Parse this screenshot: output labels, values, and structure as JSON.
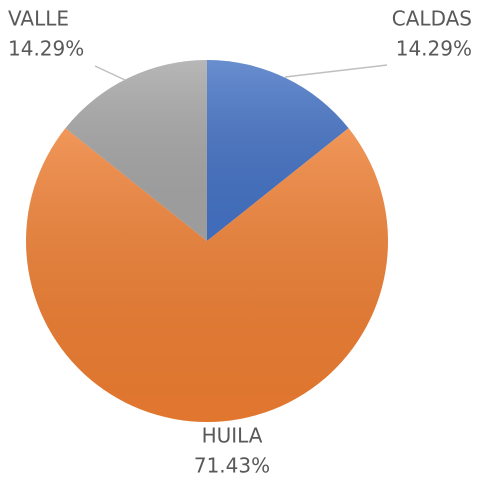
{
  "chart_data": {
    "type": "pie",
    "categories": [
      "CALDAS",
      "HUILA",
      "VALLE"
    ],
    "values": [
      14.29,
      71.43,
      14.29
    ],
    "value_labels": [
      "14.29%",
      "71.43%",
      "14.29%"
    ],
    "colors": [
      "#4472c4",
      "#ed7d31",
      "#a5a5a5"
    ],
    "start_angle": 0,
    "direction": "clockwise"
  }
}
